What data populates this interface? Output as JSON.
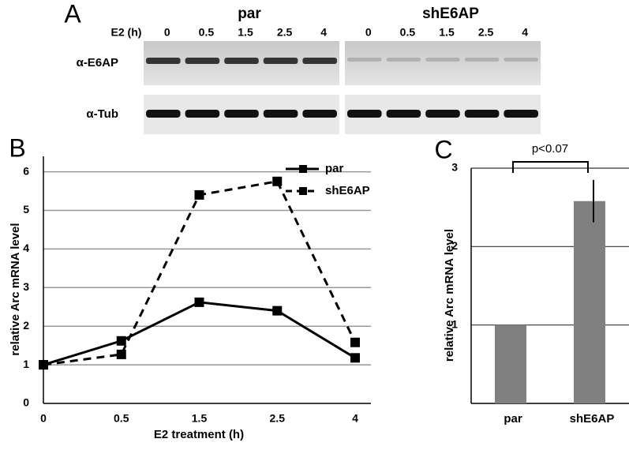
{
  "panel_a": {
    "label": "A",
    "x_label": "E2 (h)",
    "groups": [
      {
        "name": "par",
        "times": [
          "0",
          "0.5",
          "1.5",
          "2.5",
          "4"
        ]
      },
      {
        "name": "shE6AP",
        "times": [
          "0",
          "0.5",
          "1.5",
          "2.5",
          "4"
        ]
      }
    ],
    "rows": [
      "α-E6AP",
      "α-Tub"
    ]
  },
  "chart_data": [
    {
      "panel": "B",
      "type": "line",
      "x_label": "E2 treatment (h)",
      "y_label": "relative Arc mRNA level",
      "categories": [
        "0",
        "0.5",
        "1.5",
        "2.5",
        "4"
      ],
      "series": [
        {
          "name": "par",
          "color": "#000000",
          "line_style": "solid",
          "values": [
            1,
            1.62,
            2.62,
            2.4,
            1.18
          ]
        },
        {
          "name": "shE6AP",
          "color": "#000000",
          "line_style": "dashed",
          "values": [
            1,
            1.27,
            5.4,
            5.75,
            1.58
          ]
        }
      ],
      "ylim": [
        0,
        6.4
      ],
      "yticks": [
        0,
        1,
        2,
        3,
        4,
        5,
        6
      ],
      "grid": true,
      "legend": "top-right"
    },
    {
      "panel": "C",
      "type": "bar",
      "y_label": "relative Arc mRNA level",
      "categories": [
        "par",
        "shE6AP"
      ],
      "values": [
        1,
        2.58
      ],
      "errors": [
        null,
        0.27
      ],
      "color": "#808080",
      "annotation": "p<0.07",
      "ylim": [
        0,
        3
      ],
      "yticks": [
        1,
        2,
        3
      ],
      "grid": true
    }
  ]
}
